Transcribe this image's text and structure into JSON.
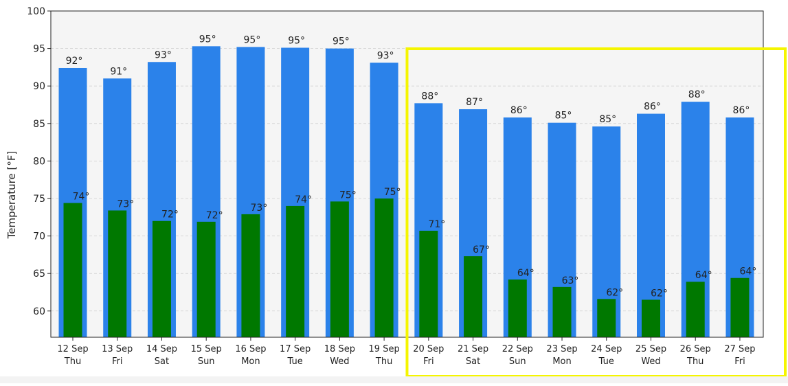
{
  "chart_data": {
    "type": "bar",
    "ylabel": "Temperature [°F]",
    "ylim": [
      56.5,
      100
    ],
    "yticks": [
      60,
      65,
      70,
      75,
      80,
      85,
      90,
      95,
      100
    ],
    "grid": true,
    "categories": [
      [
        "12 Sep",
        "Thu"
      ],
      [
        "13 Sep",
        "Fri"
      ],
      [
        "14 Sep",
        "Sat"
      ],
      [
        "15 Sep",
        "Sun"
      ],
      [
        "16 Sep",
        "Mon"
      ],
      [
        "17 Sep",
        "Tue"
      ],
      [
        "18 Sep",
        "Wed"
      ],
      [
        "19 Sep",
        "Thu"
      ],
      [
        "20 Sep",
        "Fri"
      ],
      [
        "21 Sep",
        "Sat"
      ],
      [
        "22 Sep",
        "Sun"
      ],
      [
        "23 Sep",
        "Mon"
      ],
      [
        "24 Sep",
        "Tue"
      ],
      [
        "25 Sep",
        "Wed"
      ],
      [
        "26 Sep",
        "Thu"
      ],
      [
        "27 Sep",
        "Fri"
      ]
    ],
    "series": [
      {
        "key": "high",
        "color": "#2b82ea",
        "values": [
          92.4,
          91.0,
          93.2,
          95.3,
          95.2,
          95.1,
          95.0,
          93.1,
          87.7,
          86.9,
          85.8,
          85.1,
          84.6,
          86.3,
          87.9,
          85.8
        ],
        "labels": [
          "92°",
          "91°",
          "93°",
          "95°",
          "95°",
          "95°",
          "95°",
          "93°",
          "88°",
          "87°",
          "86°",
          "85°",
          "85°",
          "86°",
          "88°",
          "86°"
        ]
      },
      {
        "key": "low",
        "color": "#007800",
        "values": [
          74.4,
          73.4,
          72.0,
          71.9,
          72.9,
          74.0,
          74.6,
          75.0,
          70.7,
          67.3,
          64.2,
          63.2,
          61.6,
          61.5,
          63.9,
          64.4
        ],
        "labels": [
          "74°",
          "73°",
          "72°",
          "72°",
          "73°",
          "74°",
          "75°",
          "75°",
          "71°",
          "67°",
          "64°",
          "63°",
          "62°",
          "62°",
          "64°",
          "64°"
        ]
      }
    ],
    "highlight": {
      "from_index": 8,
      "to_index": 15,
      "color": "#f5f500"
    },
    "background": "#f5f5f5"
  }
}
